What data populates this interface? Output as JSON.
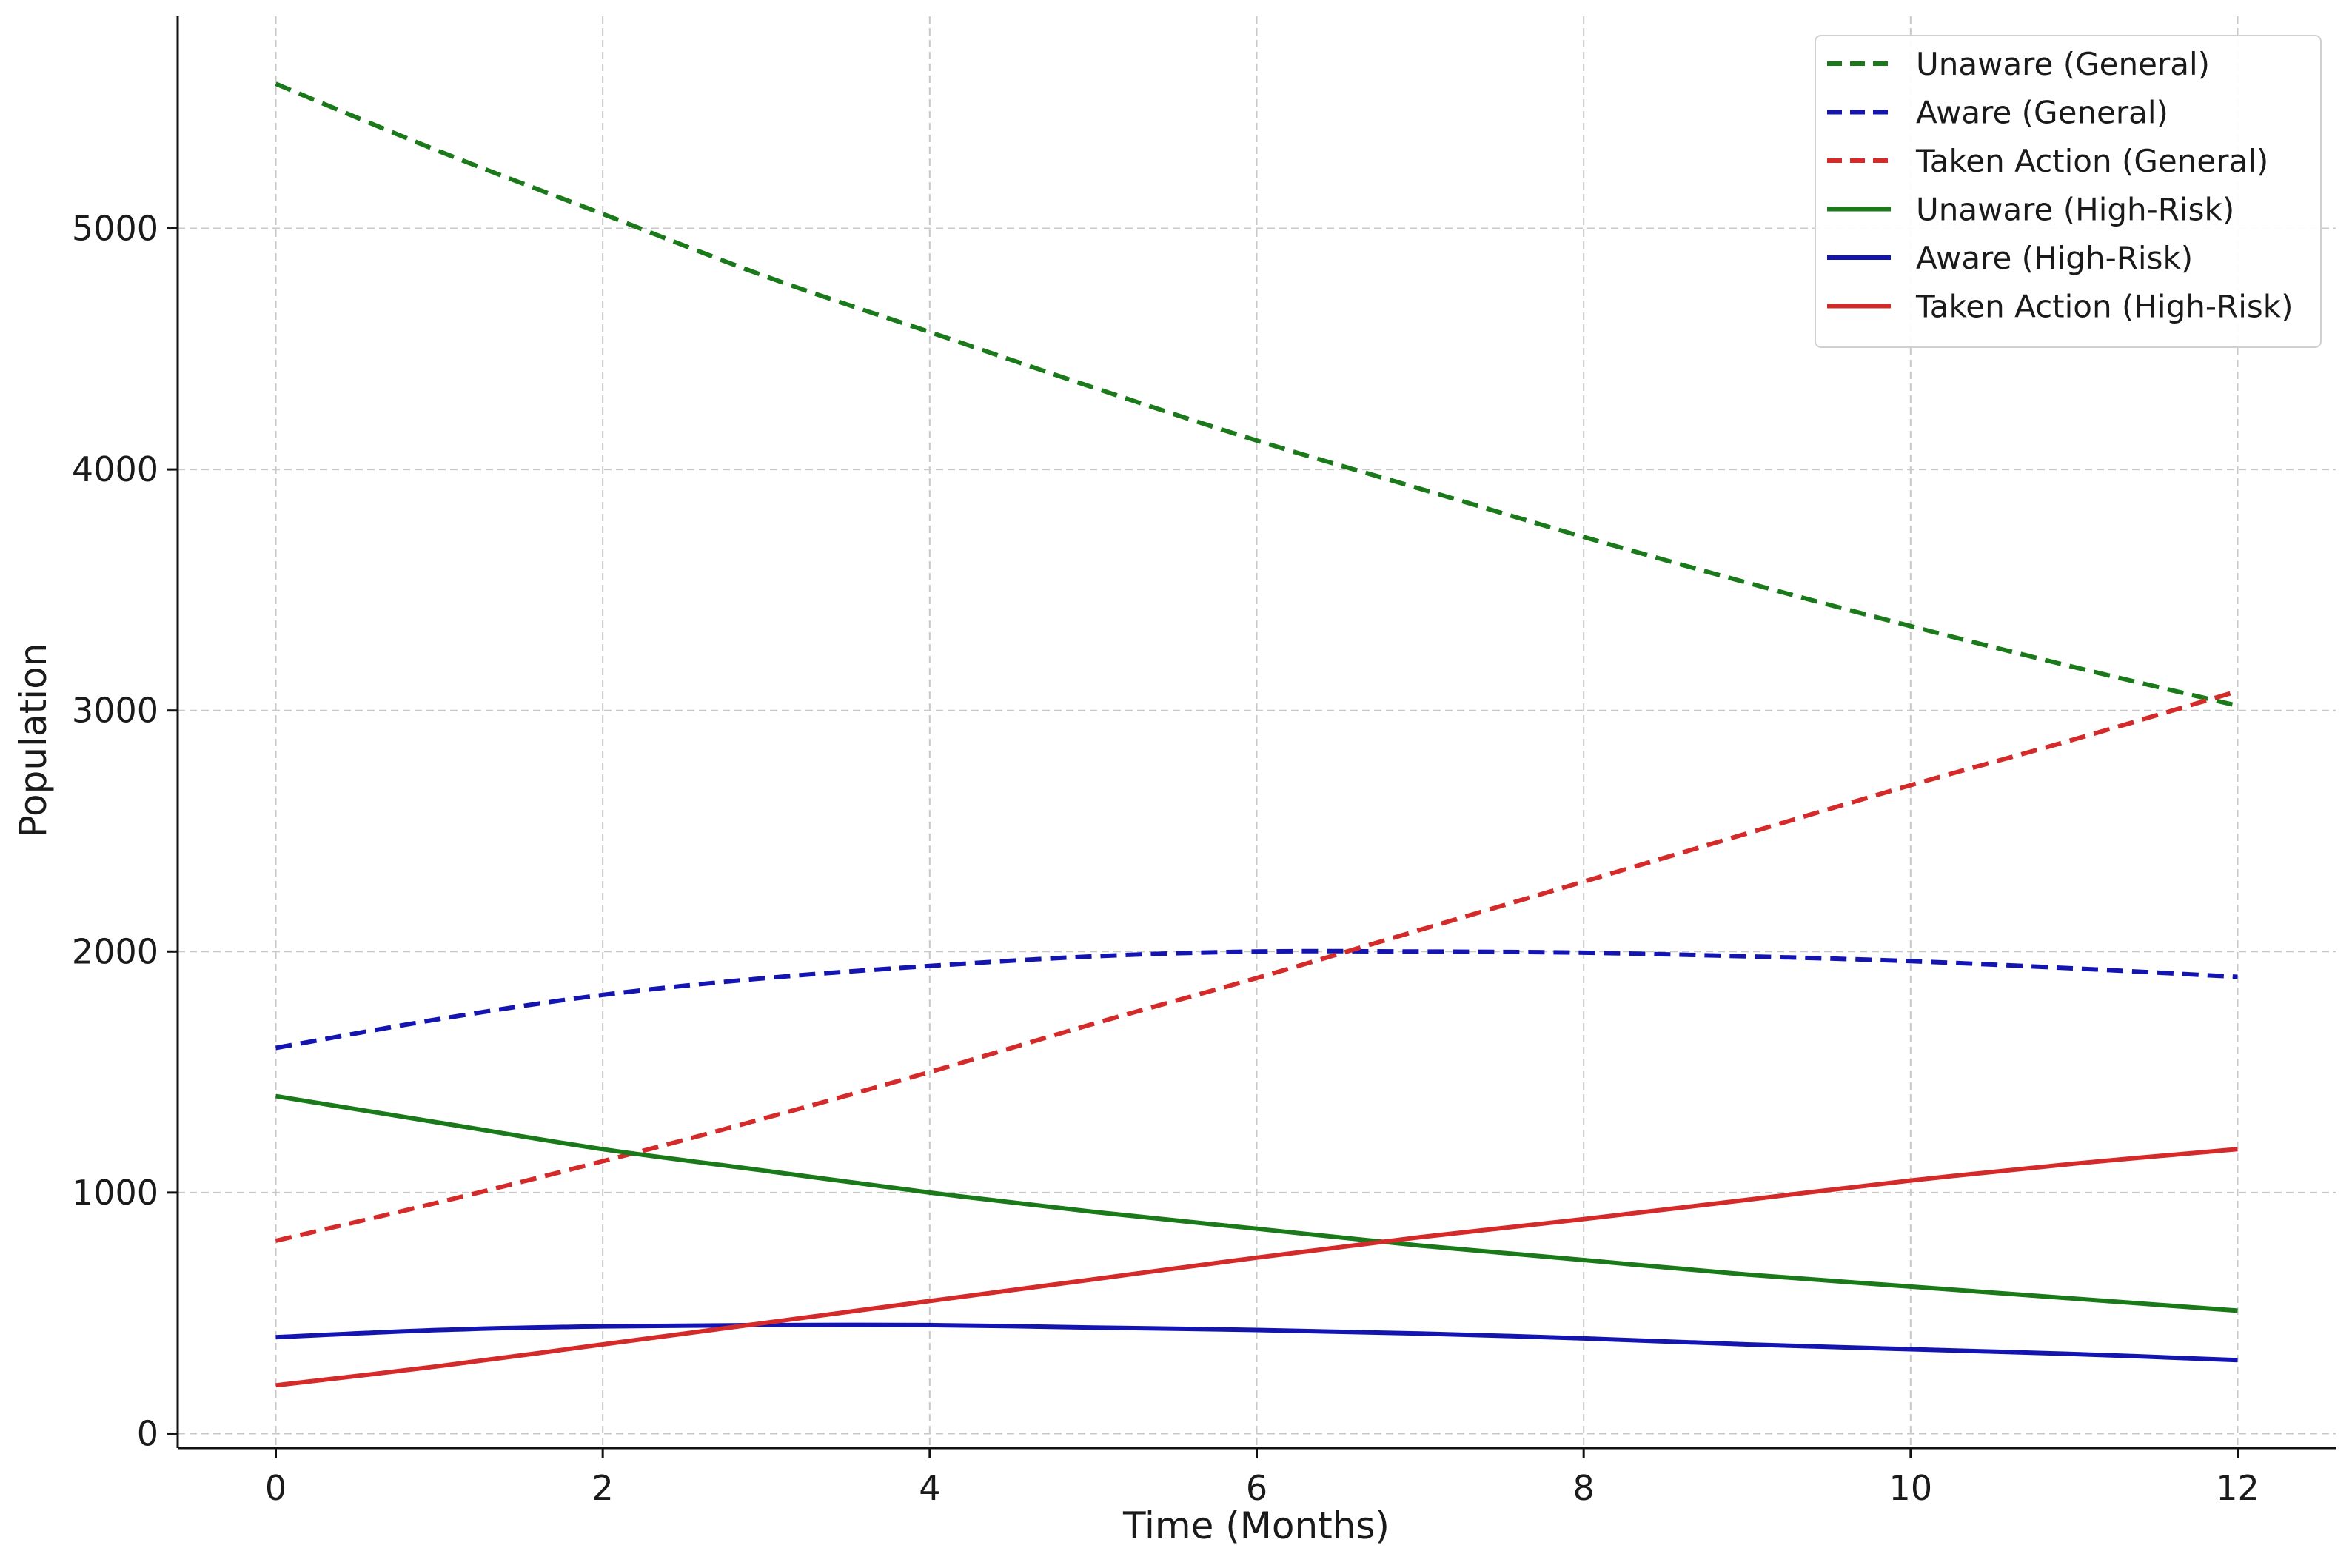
{
  "chart_data": {
    "type": "line",
    "title": "",
    "xlabel": "Time (Months)",
    "ylabel": "Population",
    "xlim": [
      -0.6,
      12.6
    ],
    "ylim": [
      -60,
      5880
    ],
    "x_ticks": [
      0,
      2,
      4,
      6,
      8,
      10,
      12
    ],
    "y_ticks": [
      0,
      1000,
      2000,
      3000,
      4000,
      5000
    ],
    "grid": true,
    "legend_position": "top-right",
    "x": [
      0,
      1,
      2,
      3,
      4,
      5,
      6,
      7,
      8,
      9,
      10,
      11,
      12
    ],
    "series": [
      {
        "name": "Unaware (General)",
        "color": "#1a7a1a",
        "style": "dashed",
        "values": [
          5600,
          5320,
          5060,
          4800,
          4570,
          4340,
          4120,
          3920,
          3720,
          3530,
          3350,
          3180,
          3020
        ]
      },
      {
        "name": "Aware (General)",
        "color": "#1414b0",
        "style": "dashed",
        "values": [
          1600,
          1720,
          1820,
          1890,
          1940,
          1980,
          2000,
          2000,
          1995,
          1980,
          1960,
          1930,
          1895
        ]
      },
      {
        "name": "Taken Action (General)",
        "color": "#d42a2a",
        "style": "dashed",
        "values": [
          800,
          960,
          1130,
          1310,
          1500,
          1700,
          1890,
          2090,
          2290,
          2490,
          2690,
          2880,
          3080
        ]
      },
      {
        "name": "Unaware (High-Risk)",
        "color": "#1a7a1a",
        "style": "solid",
        "values": [
          1400,
          1290,
          1180,
          1090,
          1000,
          920,
          850,
          780,
          720,
          660,
          610,
          560,
          510
        ]
      },
      {
        "name": "Aware (High-Risk)",
        "color": "#1414b0",
        "style": "solid",
        "values": [
          400,
          430,
          445,
          450,
          450,
          440,
          430,
          415,
          395,
          370,
          350,
          330,
          305
        ]
      },
      {
        "name": "Taken Action (High-Risk)",
        "color": "#d42a2a",
        "style": "solid",
        "values": [
          200,
          280,
          370,
          460,
          550,
          640,
          730,
          815,
          890,
          970,
          1050,
          1120,
          1180
        ]
      }
    ]
  }
}
